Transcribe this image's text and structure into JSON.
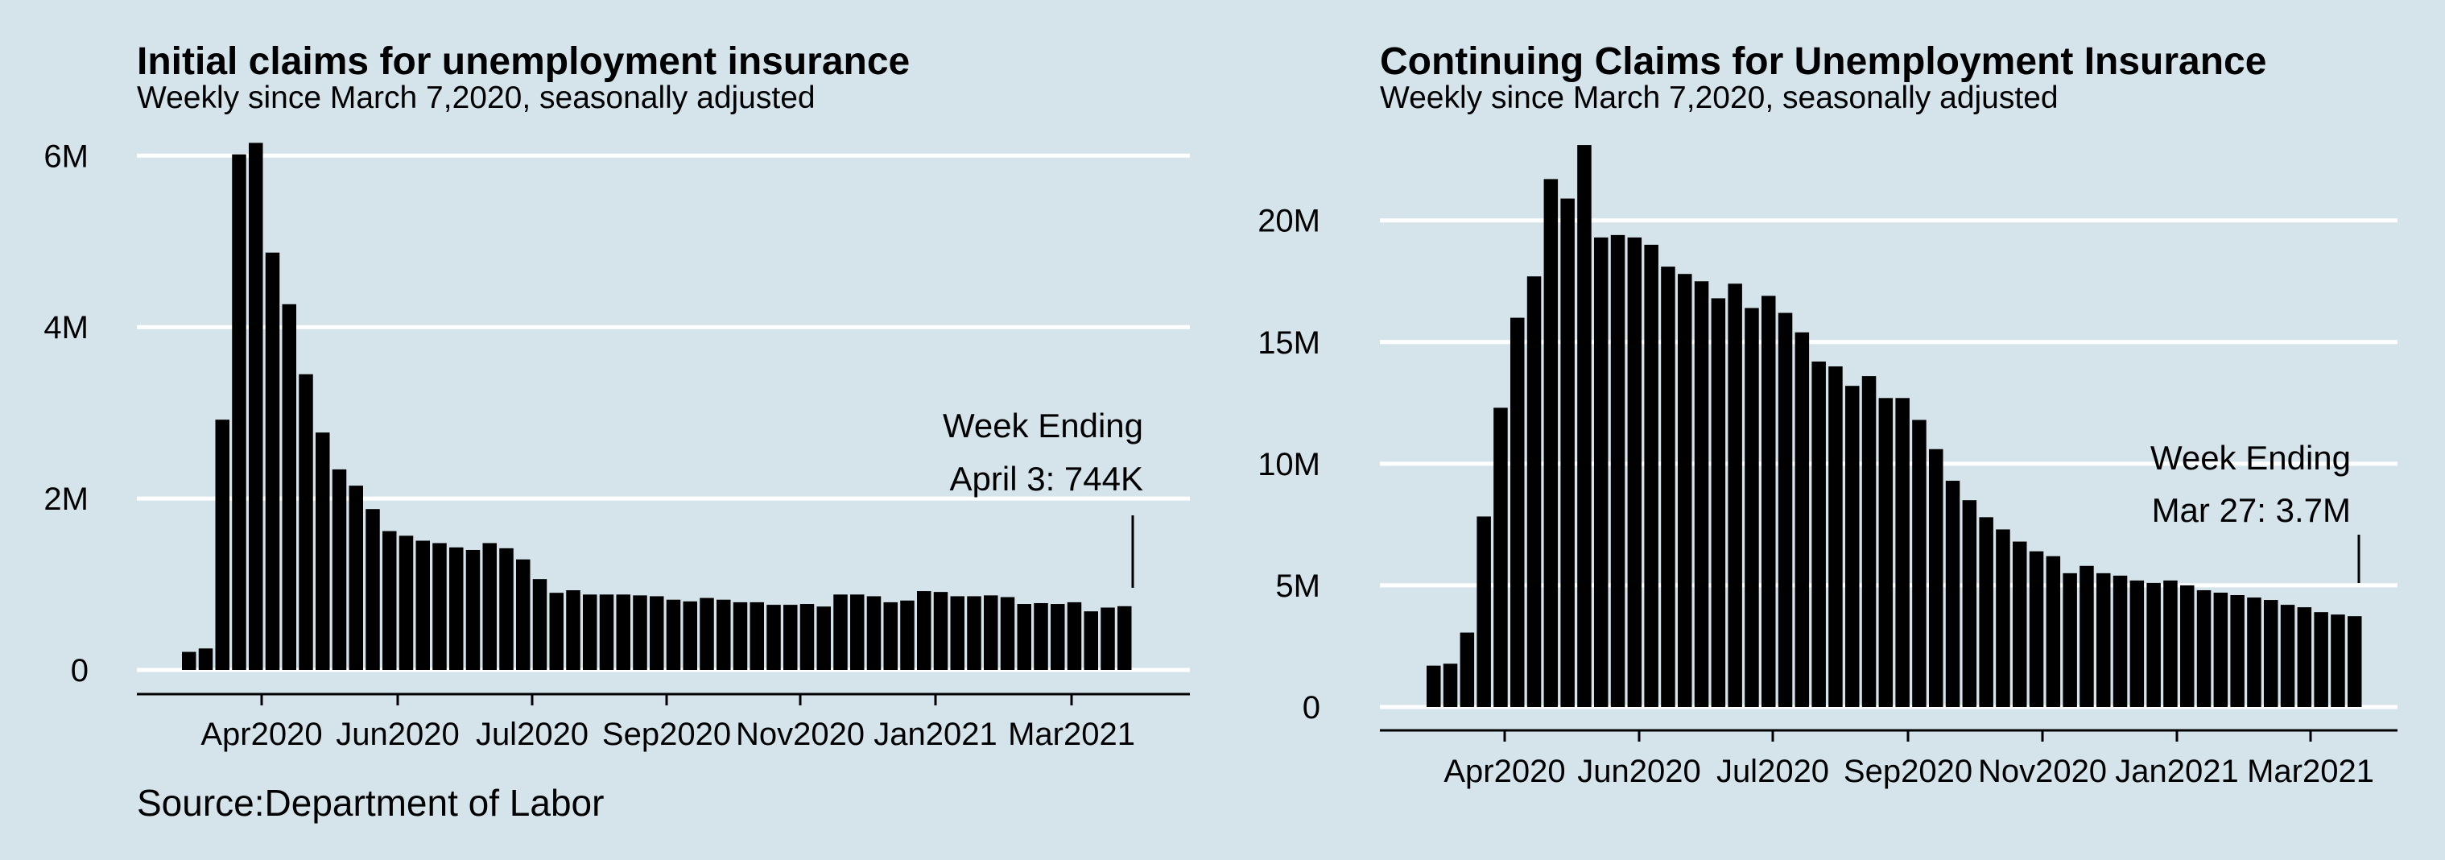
{
  "chart_data": [
    {
      "type": "bar",
      "title": "Initial claims for unemployment insurance",
      "subtitle": "Weekly since March 7,2020, seasonally adjusted",
      "source": "Source:Department of Labor",
      "ylim": [
        0,
        6200000
      ],
      "yticks": [
        {
          "value": 0,
          "label": "0"
        },
        {
          "value": 2000000,
          "label": "2M"
        },
        {
          "value": 4000000,
          "label": "4M"
        },
        {
          "value": 6000000,
          "label": "6M"
        }
      ],
      "xtick_labels": [
        "Apr2020",
        "Jun2020",
        "Jul2020",
        "Sep2020",
        "Nov2020",
        "Jan2021",
        "Mar2021"
      ],
      "grid": true,
      "annotation": {
        "line1": "Week Ending",
        "line2": "April 3: 744K"
      },
      "values": [
        211000,
        251000,
        2920000,
        6015000,
        6149000,
        4869000,
        4267000,
        3450000,
        2770000,
        2340000,
        2150000,
        1877000,
        1620000,
        1566000,
        1508000,
        1480000,
        1430000,
        1400000,
        1480000,
        1420000,
        1290000,
        1060000,
        900000,
        930000,
        880000,
        880000,
        880000,
        870000,
        860000,
        820000,
        800000,
        840000,
        820000,
        790000,
        790000,
        760000,
        760000,
        770000,
        740000,
        880000,
        880000,
        860000,
        790000,
        810000,
        920000,
        910000,
        860000,
        860000,
        870000,
        850000,
        770000,
        780000,
        770000,
        790000,
        684000,
        728000,
        744000
      ]
    },
    {
      "type": "bar",
      "title": "Continuing Claims for Unemployment Insurance",
      "subtitle": "Weekly since March 7,2020, seasonally adjusted",
      "ylim": [
        0,
        23500000
      ],
      "yticks": [
        {
          "value": 0,
          "label": "0"
        },
        {
          "value": 5000000,
          "label": "5M"
        },
        {
          "value": 10000000,
          "label": "10M"
        },
        {
          "value": 15000000,
          "label": "15M"
        },
        {
          "value": 20000000,
          "label": "20M"
        }
      ],
      "xtick_labels": [
        "Apr2020",
        "Jun2020",
        "Jul2020",
        "Sep2020",
        "Nov2020",
        "Jan2021",
        "Mar2021"
      ],
      "grid": true,
      "annotation": {
        "line1": "Week Ending",
        "line2": "Mar 27: 3.7M"
      },
      "values": [
        1700000,
        1780000,
        3060000,
        7830000,
        12300000,
        16000000,
        17700000,
        21700000,
        20900000,
        23100000,
        19300000,
        19400000,
        19300000,
        19000000,
        18100000,
        17800000,
        17500000,
        16800000,
        17400000,
        16400000,
        16900000,
        16200000,
        15400000,
        14200000,
        14000000,
        13200000,
        13600000,
        12700000,
        12700000,
        11800000,
        10600000,
        9300000,
        8500000,
        7800000,
        7300000,
        6800000,
        6400000,
        6200000,
        5500000,
        5800000,
        5500000,
        5400000,
        5200000,
        5100000,
        5200000,
        5000000,
        4800000,
        4700000,
        4600000,
        4500000,
        4400000,
        4200000,
        4100000,
        3900000,
        3800000,
        3734000
      ]
    }
  ]
}
